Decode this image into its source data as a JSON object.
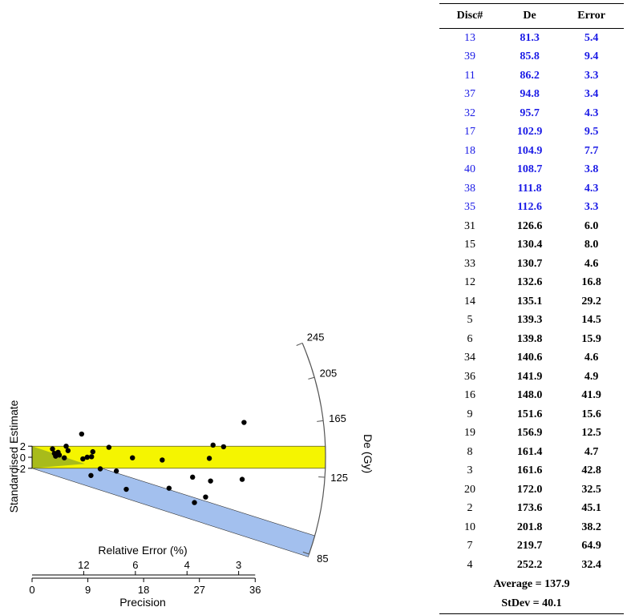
{
  "chart_data": [
    {
      "type": "scatter",
      "subtype": "radial-plot",
      "ylabel": "Standardised Estimate",
      "y_ticks": [
        "2",
        "0",
        "-2"
      ],
      "x_top_label": "Relative Error (%)",
      "x_top_ticks": [
        {
          "label": "12",
          "precision": 8.33
        },
        {
          "label": "6",
          "precision": 16.67
        },
        {
          "label": "4",
          "precision": 25
        },
        {
          "label": "3",
          "precision": 33.33
        }
      ],
      "x_bottom_label": "Precision",
      "x_bottom_ticks": [
        0,
        9,
        18,
        27,
        36
      ],
      "xlim": [
        0,
        36
      ],
      "arc_label": "De (Gy)",
      "arc_ticks": [
        245,
        205,
        165,
        125,
        85
      ],
      "arc_range": [
        85,
        245
      ],
      "bands": [
        {
          "name": "central-band",
          "color": "#f5f500",
          "center_de": 137.9
        },
        {
          "name": "lower-band",
          "color": "#a3c0ee",
          "center_de": 88.5
        }
      ],
      "overlap_color": "#9ab020",
      "points": [
        {
          "precision": 3.3,
          "z": 1.5
        },
        {
          "precision": 3.6,
          "z": 0.7
        },
        {
          "precision": 3.8,
          "z": 0.2
        },
        {
          "precision": 4.2,
          "z": 0.9
        },
        {
          "precision": 4.4,
          "z": 0.4
        },
        {
          "precision": 5.2,
          "z": -0.1
        },
        {
          "precision": 5.5,
          "z": 2.0
        },
        {
          "precision": 5.8,
          "z": 1.2
        },
        {
          "precision": 8.0,
          "z": 4.2
        },
        {
          "precision": 8.2,
          "z": -0.3
        },
        {
          "precision": 8.9,
          "z": 0.0
        },
        {
          "precision": 9.5,
          "z": -3.3
        },
        {
          "precision": 9.6,
          "z": 0.1
        },
        {
          "precision": 9.8,
          "z": 1.0
        },
        {
          "precision": 11.0,
          "z": -2.1
        },
        {
          "precision": 12.4,
          "z": 1.8
        },
        {
          "precision": 13.6,
          "z": -2.5
        },
        {
          "precision": 15.2,
          "z": -5.8
        },
        {
          "precision": 16.2,
          "z": -0.1
        },
        {
          "precision": 21.0,
          "z": -0.5
        },
        {
          "precision": 22.1,
          "z": -5.6
        },
        {
          "precision": 25.9,
          "z": -3.6
        },
        {
          "precision": 26.2,
          "z": -8.2
        },
        {
          "precision": 28.0,
          "z": -7.2
        },
        {
          "precision": 28.6,
          "z": -0.2
        },
        {
          "precision": 28.8,
          "z": -4.3
        },
        {
          "precision": 29.2,
          "z": 2.2
        },
        {
          "precision": 30.9,
          "z": 1.9
        },
        {
          "precision": 33.9,
          "z": -4.0
        },
        {
          "precision": 34.2,
          "z": 6.3
        }
      ]
    },
    {
      "type": "table",
      "columns": [
        "Disc#",
        "De",
        "Error"
      ],
      "rows": [
        {
          "disc": "13",
          "de": "81.3",
          "err": "5.4",
          "group": "blue"
        },
        {
          "disc": "39",
          "de": "85.8",
          "err": "9.4",
          "group": "blue"
        },
        {
          "disc": "11",
          "de": "86.2",
          "err": "3.3",
          "group": "blue"
        },
        {
          "disc": "37",
          "de": "94.8",
          "err": "3.4",
          "group": "blue"
        },
        {
          "disc": "32",
          "de": "95.7",
          "err": "4.3",
          "group": "blue"
        },
        {
          "disc": "17",
          "de": "102.9",
          "err": "9.5",
          "group": "blue"
        },
        {
          "disc": "18",
          "de": "104.9",
          "err": "7.7",
          "group": "blue"
        },
        {
          "disc": "40",
          "de": "108.7",
          "err": "3.8",
          "group": "blue"
        },
        {
          "disc": "38",
          "de": "111.8",
          "err": "4.3",
          "group": "blue"
        },
        {
          "disc": "35",
          "de": "112.6",
          "err": "3.3",
          "group": "blue"
        },
        {
          "disc": "31",
          "de": "126.6",
          "err": "6.0",
          "group": "black"
        },
        {
          "disc": "15",
          "de": "130.4",
          "err": "8.0",
          "group": "black"
        },
        {
          "disc": "33",
          "de": "130.7",
          "err": "4.6",
          "group": "black"
        },
        {
          "disc": "12",
          "de": "132.6",
          "err": "16.8",
          "group": "black"
        },
        {
          "disc": "14",
          "de": "135.1",
          "err": "29.2",
          "group": "black"
        },
        {
          "disc": "5",
          "de": "139.3",
          "err": "14.5",
          "group": "black"
        },
        {
          "disc": "6",
          "de": "139.8",
          "err": "15.9",
          "group": "black"
        },
        {
          "disc": "34",
          "de": "140.6",
          "err": "4.6",
          "group": "black"
        },
        {
          "disc": "36",
          "de": "141.9",
          "err": "4.9",
          "group": "black"
        },
        {
          "disc": "16",
          "de": "148.0",
          "err": "41.9",
          "group": "black"
        },
        {
          "disc": "9",
          "de": "151.6",
          "err": "15.6",
          "group": "black"
        },
        {
          "disc": "19",
          "de": "156.9",
          "err": "12.5",
          "group": "black"
        },
        {
          "disc": "8",
          "de": "161.4",
          "err": "4.7",
          "group": "black"
        },
        {
          "disc": "3",
          "de": "161.6",
          "err": "42.8",
          "group": "black"
        },
        {
          "disc": "20",
          "de": "172.0",
          "err": "32.5",
          "group": "black"
        },
        {
          "disc": "2",
          "de": "173.6",
          "err": "45.1",
          "group": "black"
        },
        {
          "disc": "10",
          "de": "201.8",
          "err": "38.2",
          "group": "black"
        },
        {
          "disc": "7",
          "de": "219.7",
          "err": "64.9",
          "group": "black"
        },
        {
          "disc": "4",
          "de": "252.2",
          "err": "32.4",
          "group": "black"
        }
      ],
      "summary": {
        "average": "Average = 137.9",
        "stdev": "StDev = 40.1"
      }
    }
  ]
}
